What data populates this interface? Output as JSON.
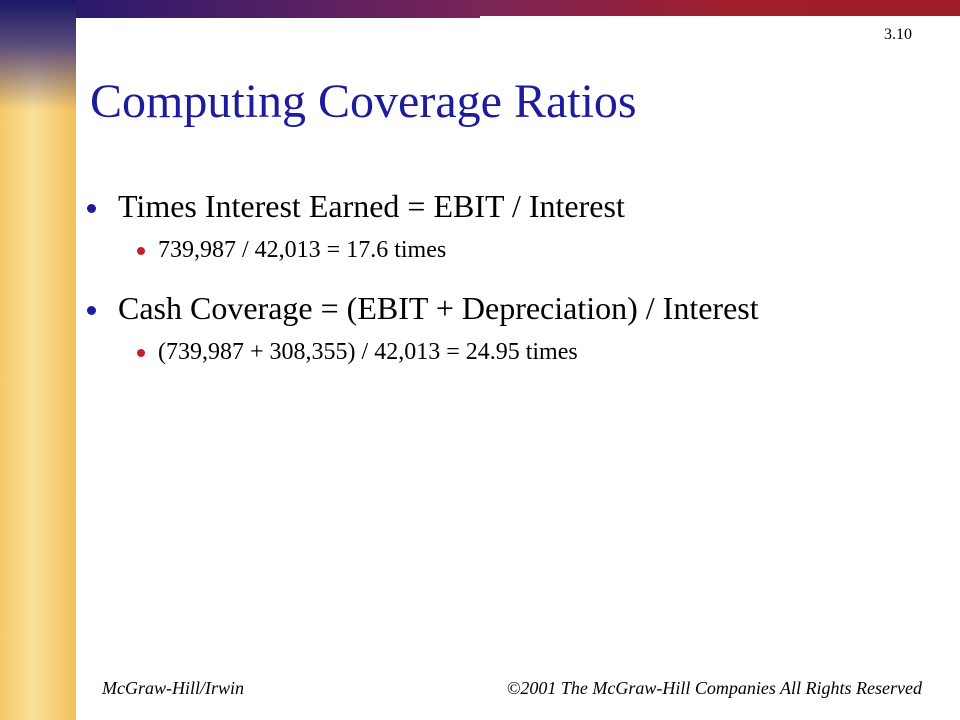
{
  "slide_number": "3.10",
  "title": "Computing Coverage Ratios",
  "bullets": [
    {
      "text": "Times Interest Earned = EBIT / Interest",
      "sub": [
        "739,987 / 42,013 = 17.6 times"
      ]
    },
    {
      "text": "Cash Coverage = (EBIT + Depreciation) / Interest",
      "sub": [
        "(739,987 + 308,355) / 42,013 = 24.95 times"
      ]
    }
  ],
  "footer": {
    "left": "McGraw-Hill/Irwin",
    "right": "©2001 The McGraw-Hill Companies All Rights Reserved"
  }
}
